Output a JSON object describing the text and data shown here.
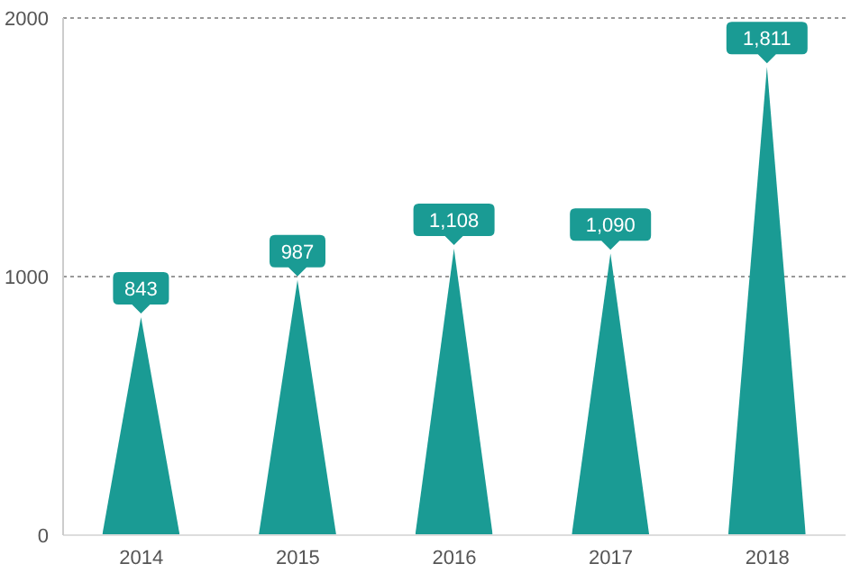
{
  "chart_data": {
    "type": "bar",
    "categories": [
      "2014",
      "2015",
      "2016",
      "2017",
      "2018"
    ],
    "values": [
      843,
      987,
      1108,
      1090,
      1811
    ],
    "color": "#1a9b94",
    "value_labels": [
      "843",
      "987",
      "1,108",
      "1,090",
      "1,811"
    ],
    "ylim": [
      0,
      2000
    ],
    "yticks": [
      0,
      1000,
      2000
    ],
    "grid": "y"
  }
}
